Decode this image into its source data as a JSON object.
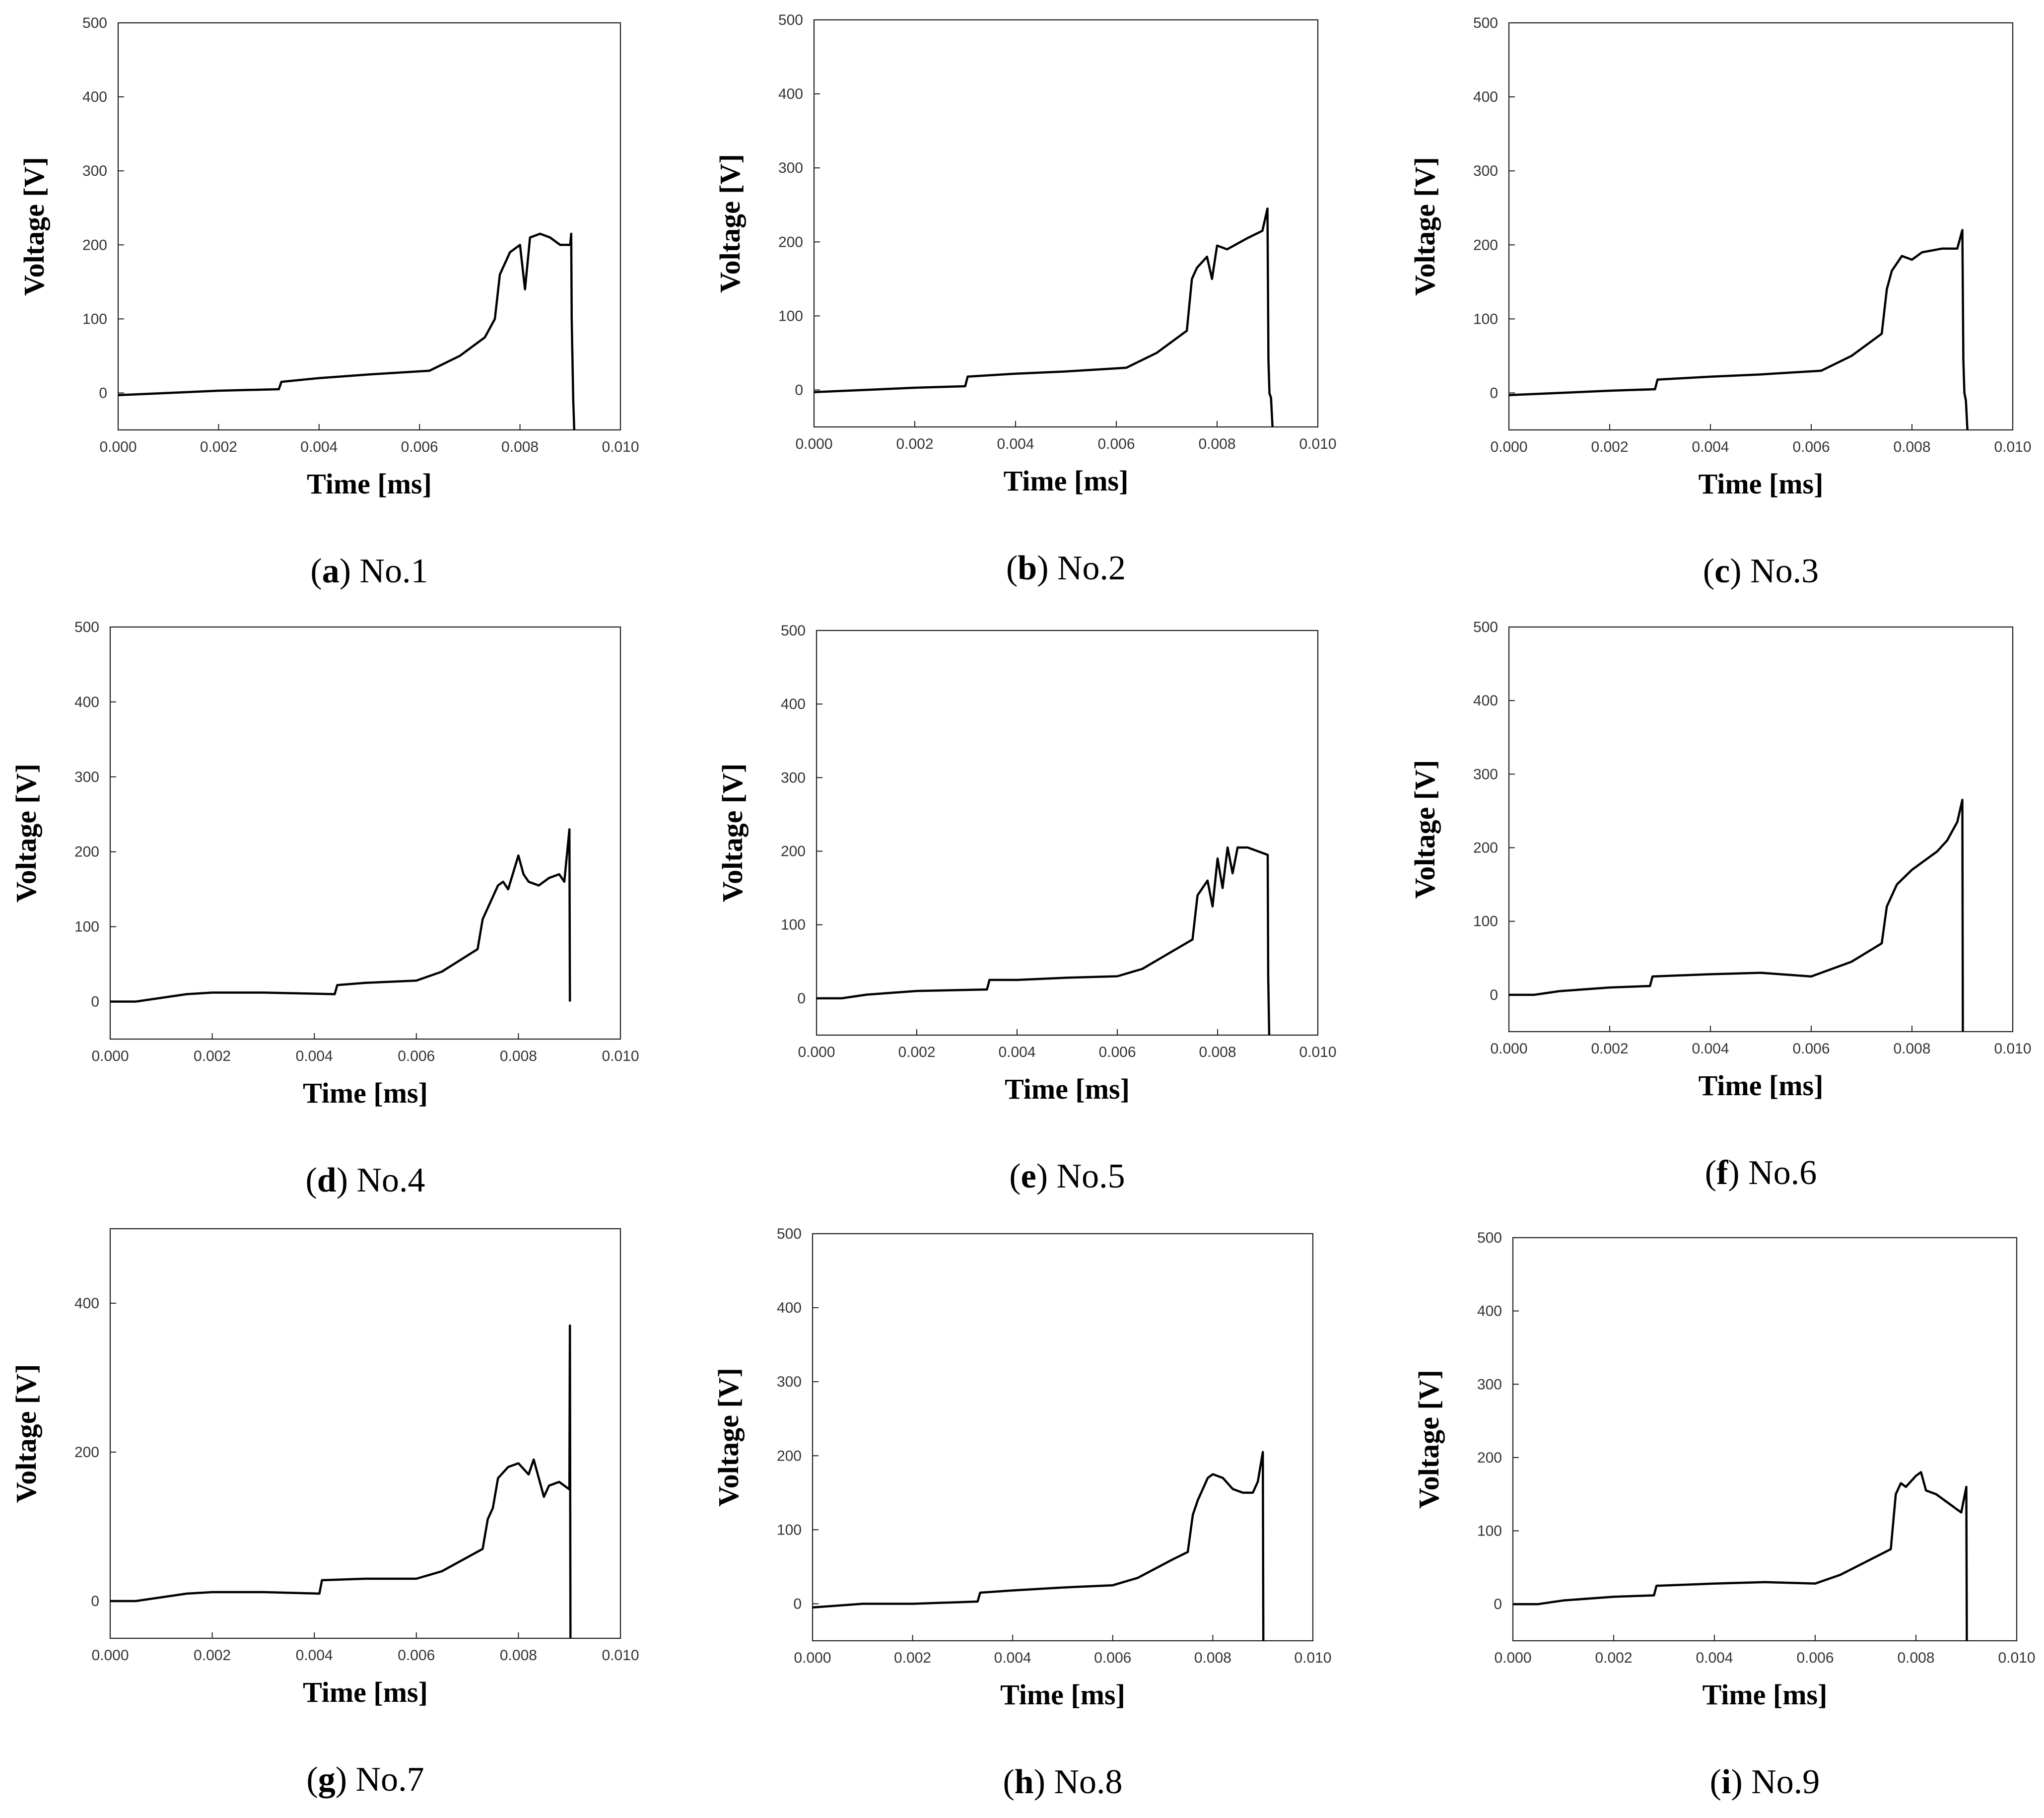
{
  "figure": {
    "x_axis_title": "Time [ms]",
    "y_axis_title": "Voltage [V]"
  },
  "chart_data": [
    {
      "type": "line",
      "panel": "a",
      "caption": "No.1",
      "xlabel": "Time [ms]",
      "ylabel": "Voltage [V]",
      "xlim": [
        0,
        0.01
      ],
      "ylim": [
        -50,
        500
      ],
      "x_ticks": [
        "0.000",
        "0.002",
        "0.004",
        "0.006",
        "0.008",
        "0.010"
      ],
      "y_ticks": [
        "0",
        "100",
        "200",
        "300",
        "400",
        "500"
      ],
      "series": [
        {
          "name": "voltage",
          "x": [
            0,
            0.001,
            0.002,
            0.0032,
            0.00325,
            0.004,
            0.005,
            0.0062,
            0.0068,
            0.0073,
            0.0075,
            0.0076,
            0.0078,
            0.008,
            0.0081,
            0.0082,
            0.0084,
            0.0086,
            0.0088,
            0.009,
            0.00902,
            0.00903,
            0.00906,
            0.00908
          ],
          "y": [
            -3,
            0,
            3,
            5,
            15,
            20,
            25,
            30,
            50,
            75,
            100,
            160,
            190,
            200,
            140,
            210,
            215,
            210,
            200,
            200,
            215,
            100,
            -10,
            -50
          ]
        }
      ]
    },
    {
      "type": "line",
      "panel": "b",
      "caption": "No.2",
      "xlabel": "Time [ms]",
      "ylabel": "Voltage [V]",
      "xlim": [
        0,
        0.01
      ],
      "ylim": [
        -50,
        500
      ],
      "x_ticks": [
        "0.000",
        "0.002",
        "0.004",
        "0.006",
        "0.008",
        "0.010"
      ],
      "y_ticks": [
        "0",
        "100",
        "200",
        "300",
        "400",
        "500"
      ],
      "series": [
        {
          "name": "voltage",
          "x": [
            0,
            0.001,
            0.002,
            0.003,
            0.00305,
            0.004,
            0.005,
            0.0062,
            0.0068,
            0.0074,
            0.0075,
            0.0076,
            0.0078,
            0.0079,
            0.008,
            0.0082,
            0.0086,
            0.0089,
            0.009,
            0.00902,
            0.00904,
            0.00907,
            0.0091
          ],
          "y": [
            -3,
            0,
            3,
            5,
            18,
            22,
            25,
            30,
            50,
            80,
            150,
            165,
            180,
            150,
            195,
            190,
            205,
            215,
            245,
            40,
            -5,
            -10,
            -50
          ]
        }
      ]
    },
    {
      "type": "line",
      "panel": "c",
      "caption": "No.3",
      "xlabel": "Time [ms]",
      "ylabel": "Voltage [V]",
      "xlim": [
        0,
        0.01
      ],
      "ylim": [
        -50,
        500
      ],
      "x_ticks": [
        "0.000",
        "0.002",
        "0.004",
        "0.006",
        "0.008",
        "0.010"
      ],
      "y_ticks": [
        "0",
        "100",
        "200",
        "300",
        "400",
        "500"
      ],
      "series": [
        {
          "name": "voltage",
          "x": [
            0,
            0.001,
            0.002,
            0.0029,
            0.00295,
            0.004,
            0.005,
            0.0062,
            0.0068,
            0.0074,
            0.0075,
            0.0076,
            0.0078,
            0.008,
            0.0082,
            0.0086,
            0.0089,
            0.009,
            0.00902,
            0.00904,
            0.00907,
            0.0091
          ],
          "y": [
            -3,
            0,
            3,
            5,
            18,
            22,
            25,
            30,
            50,
            80,
            140,
            165,
            185,
            180,
            190,
            195,
            195,
            220,
            45,
            0,
            -10,
            -50
          ]
        }
      ]
    },
    {
      "type": "line",
      "panel": "d",
      "caption": "No.4",
      "xlabel": "Time [ms]",
      "ylabel": "Voltage [V]",
      "xlim": [
        0,
        0.01
      ],
      "ylim": [
        -50,
        500
      ],
      "x_ticks": [
        "0.000",
        "0.002",
        "0.004",
        "0.006",
        "0.008",
        "0.010"
      ],
      "y_ticks": [
        "0",
        "100",
        "200",
        "300",
        "400",
        "500"
      ],
      "series": [
        {
          "name": "voltage",
          "x": [
            0,
            0.0005,
            0.001,
            0.0015,
            0.002,
            0.003,
            0.0044,
            0.00445,
            0.005,
            0.006,
            0.0065,
            0.0072,
            0.0073,
            0.0074,
            0.0076,
            0.0077,
            0.0078,
            0.008,
            0.0081,
            0.0082,
            0.0084,
            0.0086,
            0.0088,
            0.0089,
            0.009,
            0.00901
          ],
          "y": [
            0,
            0,
            5,
            10,
            12,
            12,
            10,
            22,
            25,
            28,
            40,
            70,
            110,
            125,
            155,
            160,
            150,
            195,
            170,
            160,
            155,
            165,
            170,
            160,
            230,
            0
          ]
        }
      ]
    },
    {
      "type": "line",
      "panel": "e",
      "caption": "No.5",
      "xlabel": "Time [ms]",
      "ylabel": "Voltage [V]",
      "xlim": [
        0,
        0.01
      ],
      "ylim": [
        -50,
        500
      ],
      "x_ticks": [
        "0.000",
        "0.002",
        "0.004",
        "0.006",
        "0.008",
        "0.010"
      ],
      "y_ticks": [
        "0",
        "100",
        "200",
        "300",
        "400",
        "500"
      ],
      "series": [
        {
          "name": "voltage",
          "x": [
            0,
            0.0005,
            0.001,
            0.002,
            0.0034,
            0.00345,
            0.004,
            0.005,
            0.006,
            0.0065,
            0.0075,
            0.0076,
            0.0078,
            0.0079,
            0.008,
            0.0081,
            0.0082,
            0.0083,
            0.0084,
            0.0086,
            0.0088,
            0.009,
            0.00901,
            0.00903
          ],
          "y": [
            0,
            0,
            5,
            10,
            12,
            25,
            25,
            28,
            30,
            40,
            80,
            140,
            160,
            125,
            190,
            150,
            205,
            170,
            205,
            205,
            200,
            195,
            30,
            -50
          ]
        }
      ]
    },
    {
      "type": "line",
      "panel": "f",
      "caption": "No.6",
      "xlabel": "Time [ms]",
      "ylabel": "Voltage [V]",
      "xlim": [
        0,
        0.01
      ],
      "ylim": [
        -50,
        500
      ],
      "x_ticks": [
        "0.000",
        "0.002",
        "0.004",
        "0.006",
        "0.008",
        "0.010"
      ],
      "y_ticks": [
        "0",
        "100",
        "200",
        "300",
        "400",
        "500"
      ],
      "series": [
        {
          "name": "voltage",
          "x": [
            0,
            0.0005,
            0.001,
            0.002,
            0.0028,
            0.00285,
            0.004,
            0.005,
            0.006,
            0.0068,
            0.0074,
            0.0075,
            0.0077,
            0.008,
            0.0082,
            0.0085,
            0.0087,
            0.0089,
            0.009,
            0.00901
          ],
          "y": [
            0,
            0,
            5,
            10,
            12,
            25,
            28,
            30,
            25,
            45,
            70,
            120,
            150,
            170,
            180,
            195,
            210,
            235,
            265,
            -50
          ]
        }
      ]
    },
    {
      "type": "line",
      "panel": "g",
      "caption": "No.7",
      "xlabel": "Time [ms]",
      "ylabel": "Voltage [V]",
      "xlim": [
        0,
        0.01
      ],
      "ylim": [
        -50,
        500
      ],
      "x_ticks": [
        "0.000",
        "0.002",
        "0.004",
        "0.006",
        "0.008",
        "0.010"
      ],
      "y_ticks": [
        "0",
        "200",
        "400"
      ],
      "series": [
        {
          "name": "voltage",
          "x": [
            0,
            0.0005,
            0.001,
            0.0015,
            0.002,
            0.003,
            0.0041,
            0.00415,
            0.005,
            0.006,
            0.0065,
            0.0073,
            0.0074,
            0.0075,
            0.0076,
            0.0078,
            0.008,
            0.0082,
            0.0083,
            0.0084,
            0.0085,
            0.0086,
            0.0088,
            0.009,
            0.00901,
            0.00902
          ],
          "y": [
            0,
            0,
            5,
            10,
            12,
            12,
            10,
            28,
            30,
            30,
            40,
            70,
            110,
            125,
            165,
            180,
            185,
            170,
            190,
            165,
            140,
            155,
            160,
            150,
            370,
            -50
          ]
        }
      ]
    },
    {
      "type": "line",
      "panel": "h",
      "caption": "No.8",
      "xlabel": "Time [ms]",
      "ylabel": "Voltage [V]",
      "xlim": [
        0,
        0.01
      ],
      "ylim": [
        -50,
        500
      ],
      "x_ticks": [
        "0.000",
        "0.002",
        "0.004",
        "0.006",
        "0.008",
        "0.010"
      ],
      "y_ticks": [
        "0",
        "100",
        "200",
        "300",
        "400",
        "500"
      ],
      "series": [
        {
          "name": "voltage",
          "x": [
            0,
            0.001,
            0.002,
            0.0033,
            0.00335,
            0.004,
            0.005,
            0.006,
            0.0065,
            0.0072,
            0.0075,
            0.0076,
            0.0077,
            0.0079,
            0.008,
            0.0082,
            0.0084,
            0.0086,
            0.0088,
            0.0089,
            0.009,
            0.00901
          ],
          "y": [
            -5,
            0,
            0,
            3,
            15,
            18,
            22,
            25,
            35,
            60,
            70,
            120,
            140,
            170,
            175,
            170,
            155,
            150,
            150,
            165,
            205,
            -50
          ]
        }
      ]
    },
    {
      "type": "line",
      "panel": "i",
      "caption": "No.9",
      "xlabel": "Time [ms]",
      "ylabel": "Voltage [V]",
      "xlim": [
        0,
        0.01
      ],
      "ylim": [
        -50,
        500
      ],
      "x_ticks": [
        "0.000",
        "0.002",
        "0.004",
        "0.006",
        "0.008",
        "0.010"
      ],
      "y_ticks": [
        "0",
        "100",
        "200",
        "300",
        "400",
        "500"
      ],
      "series": [
        {
          "name": "voltage",
          "x": [
            0,
            0.0005,
            0.001,
            0.002,
            0.0028,
            0.00285,
            0.004,
            0.005,
            0.006,
            0.0065,
            0.0075,
            0.0076,
            0.0077,
            0.0078,
            0.008,
            0.0081,
            0.0082,
            0.0084,
            0.0086,
            0.0088,
            0.0089,
            0.009,
            0.00901
          ],
          "y": [
            0,
            0,
            5,
            10,
            12,
            25,
            28,
            30,
            28,
            40,
            75,
            150,
            165,
            160,
            175,
            180,
            155,
            150,
            140,
            130,
            125,
            160,
            -50
          ]
        }
      ]
    }
  ]
}
